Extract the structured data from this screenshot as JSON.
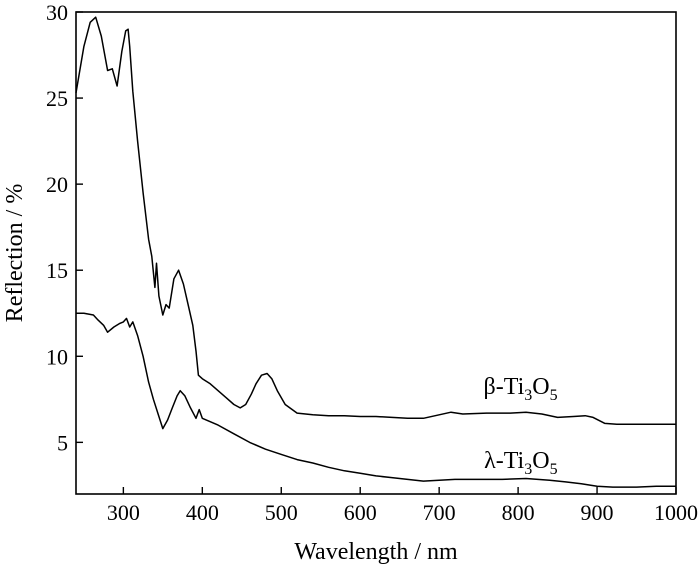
{
  "chart_data": {
    "type": "line",
    "title": "",
    "xlabel": "Wavelength / nm",
    "ylabel": "Reflection / %",
    "xlim": [
      240,
      1000
    ],
    "ylim": [
      2,
      30
    ],
    "xticks": [
      300,
      400,
      500,
      600,
      700,
      800,
      900,
      1000
    ],
    "yticks": [
      5,
      10,
      15,
      20,
      25,
      30
    ],
    "grid": false,
    "legend": "none",
    "line_color": "#000000",
    "series": [
      {
        "name": "β-Ti3O5",
        "label_parts": {
          "prefix": "β-Ti",
          "sub1": "3",
          "mid": "O",
          "sub2": "5"
        },
        "label_anchor": [
          850,
          7.8
        ],
        "points": [
          [
            240,
            25.3
          ],
          [
            250,
            28.0
          ],
          [
            258,
            29.4
          ],
          [
            265,
            29.7
          ],
          [
            272,
            28.6
          ],
          [
            280,
            26.6
          ],
          [
            286,
            26.7
          ],
          [
            292,
            25.7
          ],
          [
            298,
            27.7
          ],
          [
            303,
            28.9
          ],
          [
            306,
            29.0
          ],
          [
            308,
            28.0
          ],
          [
            312,
            25.4
          ],
          [
            318,
            22.5
          ],
          [
            325,
            19.5
          ],
          [
            332,
            16.8
          ],
          [
            336,
            15.8
          ],
          [
            340,
            14.0
          ],
          [
            342,
            15.4
          ],
          [
            345,
            13.5
          ],
          [
            350,
            12.4
          ],
          [
            354,
            13.0
          ],
          [
            358,
            12.8
          ],
          [
            364,
            14.5
          ],
          [
            370,
            15.0
          ],
          [
            376,
            14.2
          ],
          [
            382,
            13.0
          ],
          [
            388,
            11.8
          ],
          [
            392,
            10.3
          ],
          [
            395,
            8.9
          ],
          [
            400,
            8.7
          ],
          [
            410,
            8.4
          ],
          [
            420,
            8.0
          ],
          [
            430,
            7.6
          ],
          [
            440,
            7.2
          ],
          [
            448,
            7.0
          ],
          [
            455,
            7.2
          ],
          [
            462,
            7.8
          ],
          [
            468,
            8.4
          ],
          [
            475,
            8.9
          ],
          [
            482,
            9.0
          ],
          [
            488,
            8.7
          ],
          [
            495,
            8.0
          ],
          [
            505,
            7.2
          ],
          [
            520,
            6.7
          ],
          [
            540,
            6.6
          ],
          [
            560,
            6.55
          ],
          [
            580,
            6.55
          ],
          [
            600,
            6.5
          ],
          [
            620,
            6.5
          ],
          [
            640,
            6.45
          ],
          [
            660,
            6.4
          ],
          [
            680,
            6.4
          ],
          [
            700,
            6.6
          ],
          [
            715,
            6.75
          ],
          [
            730,
            6.65
          ],
          [
            760,
            6.7
          ],
          [
            790,
            6.7
          ],
          [
            810,
            6.75
          ],
          [
            830,
            6.65
          ],
          [
            850,
            6.45
          ],
          [
            870,
            6.5
          ],
          [
            885,
            6.55
          ],
          [
            895,
            6.45
          ],
          [
            910,
            6.1
          ],
          [
            925,
            6.05
          ],
          [
            950,
            6.05
          ],
          [
            975,
            6.05
          ],
          [
            1000,
            6.05
          ]
        ]
      },
      {
        "name": "λ-Ti3O5",
        "label_parts": {
          "prefix": "λ-Ti",
          "sub1": "3",
          "mid": "O",
          "sub2": "5"
        },
        "label_anchor": [
          850,
          3.5
        ],
        "points": [
          [
            240,
            12.5
          ],
          [
            250,
            12.5
          ],
          [
            262,
            12.4
          ],
          [
            268,
            12.1
          ],
          [
            275,
            11.8
          ],
          [
            280,
            11.4
          ],
          [
            288,
            11.7
          ],
          [
            295,
            11.9
          ],
          [
            300,
            12.0
          ],
          [
            304,
            12.2
          ],
          [
            308,
            11.7
          ],
          [
            312,
            12.0
          ],
          [
            318,
            11.2
          ],
          [
            325,
            10.0
          ],
          [
            332,
            8.5
          ],
          [
            338,
            7.5
          ],
          [
            345,
            6.5
          ],
          [
            350,
            5.8
          ],
          [
            356,
            6.3
          ],
          [
            362,
            7.0
          ],
          [
            368,
            7.7
          ],
          [
            372,
            8.0
          ],
          [
            378,
            7.7
          ],
          [
            385,
            7.0
          ],
          [
            392,
            6.4
          ],
          [
            396,
            6.9
          ],
          [
            400,
            6.4
          ],
          [
            420,
            6.0
          ],
          [
            440,
            5.5
          ],
          [
            460,
            5.0
          ],
          [
            480,
            4.6
          ],
          [
            500,
            4.3
          ],
          [
            520,
            4.0
          ],
          [
            540,
            3.8
          ],
          [
            560,
            3.55
          ],
          [
            580,
            3.35
          ],
          [
            600,
            3.2
          ],
          [
            620,
            3.05
          ],
          [
            640,
            2.95
          ],
          [
            660,
            2.85
          ],
          [
            680,
            2.75
          ],
          [
            700,
            2.8
          ],
          [
            720,
            2.85
          ],
          [
            750,
            2.85
          ],
          [
            780,
            2.85
          ],
          [
            810,
            2.9
          ],
          [
            840,
            2.8
          ],
          [
            860,
            2.7
          ],
          [
            880,
            2.6
          ],
          [
            900,
            2.45
          ],
          [
            920,
            2.4
          ],
          [
            950,
            2.4
          ],
          [
            975,
            2.45
          ],
          [
            1000,
            2.45
          ]
        ]
      }
    ]
  }
}
